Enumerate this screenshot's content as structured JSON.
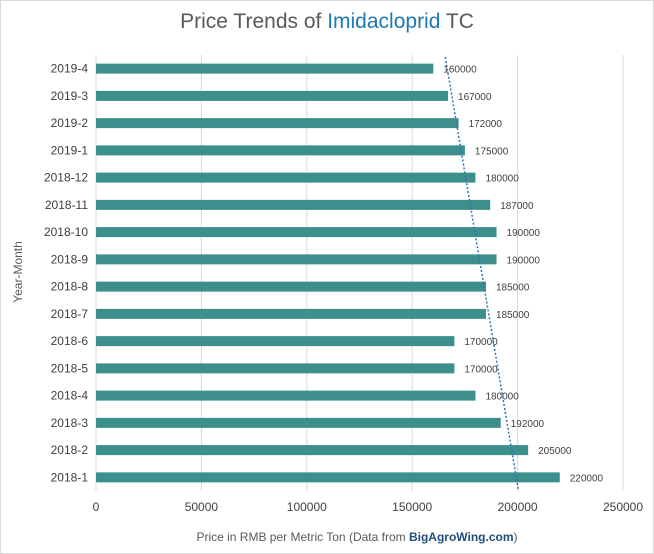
{
  "chart_data": {
    "type": "bar",
    "orientation": "horizontal",
    "title_prefix": "Price Trends of ",
    "title_accent": "Imidacloprid",
    "title_suffix": " TC",
    "ylabel": "Year-Month",
    "xlabel_prefix": "Price in RMB per Metric Ton (Data from ",
    "xlabel_source": "BigAgroWing.com",
    "xlabel_suffix": ")",
    "categories": [
      "2019-4",
      "2019-3",
      "2019-2",
      "2019-1",
      "2018-12",
      "2018-11",
      "2018-10",
      "2018-9",
      "2018-8",
      "2018-7",
      "2018-6",
      "2018-5",
      "2018-4",
      "2018-3",
      "2018-2",
      "2018-1"
    ],
    "values": [
      160000,
      167000,
      172000,
      175000,
      180000,
      187000,
      190000,
      190000,
      185000,
      185000,
      170000,
      170000,
      180000,
      192000,
      205000,
      220000
    ],
    "xlim": [
      0,
      250000
    ],
    "xticks": [
      0,
      50000,
      100000,
      150000,
      200000,
      250000
    ],
    "trendline": "linear-dotted",
    "colors": {
      "bar": "#3d8f8c",
      "trend": "#2e75b6",
      "grid": "#d9d9d9"
    }
  }
}
